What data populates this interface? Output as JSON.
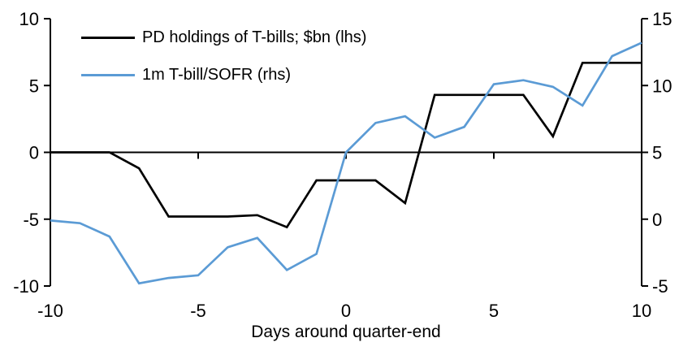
{
  "chart_data": {
    "type": "line",
    "xlabel": "Days around quarter-end",
    "x": [
      -10,
      -9,
      -8,
      -7,
      -6,
      -5,
      -4,
      -3,
      -2,
      -1,
      0,
      1,
      2,
      3,
      4,
      5,
      6,
      7,
      8,
      9,
      10
    ],
    "series": [
      {
        "name": "PD holdings of T-bills; $bn (lhs)",
        "axis": "left",
        "color": "#000000",
        "values": [
          0,
          0,
          0,
          -1.2,
          -4.8,
          -4.8,
          -4.8,
          -4.7,
          -5.6,
          -2.1,
          -2.1,
          -2.1,
          -3.8,
          4.3,
          4.3,
          4.3,
          4.3,
          1.2,
          6.7,
          6.7,
          6.7
        ]
      },
      {
        "name": "1m T-bill/SOFR (rhs)",
        "axis": "right",
        "color": "#5B9BD5",
        "values": [
          -0.1,
          -0.3,
          -1.3,
          -4.8,
          -4.4,
          -4.2,
          -2.1,
          -1.4,
          -3.8,
          -2.6,
          5.0,
          7.2,
          7.7,
          6.1,
          6.9,
          10.1,
          10.4,
          9.9,
          8.5,
          12.2,
          13.2
        ]
      }
    ],
    "x_axis": {
      "min": -10,
      "max": 10,
      "ticks": [
        -10,
        -5,
        0,
        5,
        10
      ]
    },
    "left_axis": {
      "min": -10,
      "max": 10,
      "ticks": [
        10,
        5,
        0,
        -5,
        -10
      ]
    },
    "right_axis": {
      "min": -5,
      "max": 15,
      "ticks": [
        15,
        10,
        5,
        0,
        -5
      ]
    },
    "grid": false,
    "legend_position": "top-left",
    "axis_color": "#000000"
  }
}
